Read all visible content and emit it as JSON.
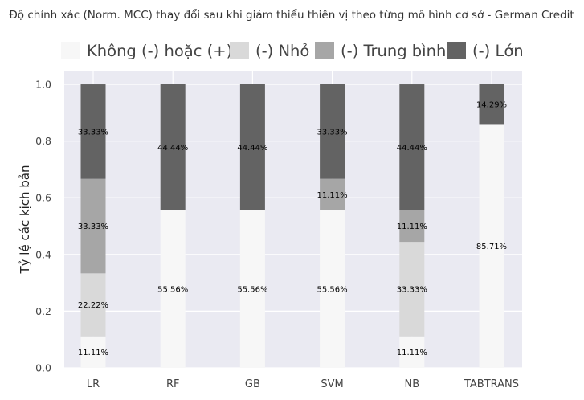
{
  "chart_data": {
    "type": "bar",
    "stacked": true,
    "title": "Độ chính xác (Norm. MCC) thay đổi sau khi giảm thiểu thiên vị theo từng mô hình cơ sở - German Credit",
    "xlabel": "",
    "ylabel": "Tỷ lệ các kịch bản",
    "ylim": [
      0,
      1.0
    ],
    "yticks": [
      "0.0",
      "0.2",
      "0.4",
      "0.6",
      "0.8",
      "1.0"
    ],
    "yticks_values": [
      0,
      0.2,
      0.4,
      0.6,
      0.8,
      1.0
    ],
    "grid": true,
    "legend_position": "top",
    "categories": [
      "LR",
      "RF",
      "GB",
      "SVM",
      "NB",
      "TABTRANS"
    ],
    "series": [
      {
        "name": "Không (-) hoặc (+)",
        "color": "#f7f7f7",
        "values": [
          0.1111,
          0.5556,
          0.5556,
          0.5556,
          0.1111,
          0.8571
        ],
        "labels": [
          "11.11%",
          "55.56%",
          "55.56%",
          "55.56%",
          "11.11%",
          "85.71%"
        ]
      },
      {
        "name": "(-) Nhỏ",
        "color": "#d9d9d9",
        "values": [
          0.2222,
          0,
          0,
          0,
          0.3333,
          0
        ],
        "labels": [
          "22.22%",
          "",
          "",
          "",
          "33.33%",
          ""
        ]
      },
      {
        "name": "(-) Trung bình",
        "color": "#a6a6a6",
        "values": [
          0.3333,
          0,
          0,
          0.1111,
          0.1111,
          0
        ],
        "labels": [
          "33.33%",
          "",
          "",
          "11.11%",
          "11.11%",
          ""
        ]
      },
      {
        "name": "(-) Lớn",
        "color": "#636363",
        "values": [
          0.3333,
          0.4444,
          0.4444,
          0.3333,
          0.4444,
          0.1429
        ],
        "labels": [
          "33.33%",
          "44.44%",
          "44.44%",
          "33.33%",
          "44.44%",
          "14.29%"
        ]
      }
    ],
    "colors": {
      "plot_background": "#eaeaf2",
      "grid": "#ffffff",
      "text": "#333333"
    }
  }
}
